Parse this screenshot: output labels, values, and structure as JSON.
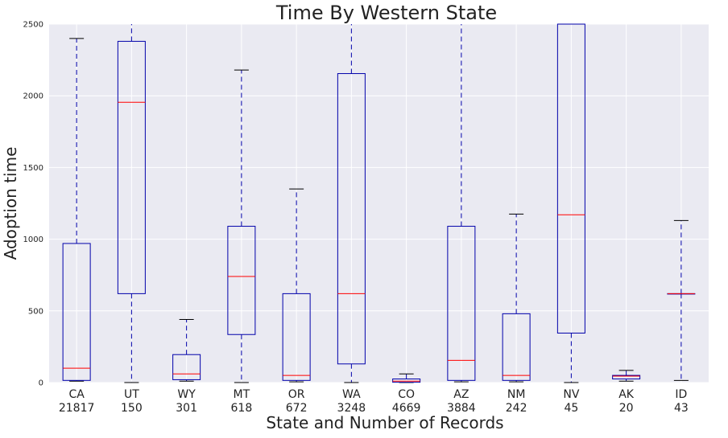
{
  "chart_data": {
    "type": "box",
    "title": "Time By Western State",
    "xlabel": "State and Number of Records",
    "ylabel": "Adoption time",
    "ylim": [
      0,
      2500
    ],
    "yticks": [
      "0",
      "500",
      "1000",
      "1500",
      "2000",
      "2500"
    ],
    "grid": true,
    "colors": {
      "background": "#eaeaf2",
      "grid": "#ffffff",
      "box": "#0000aa",
      "median": "#ff0000",
      "whisker_cap": "#000000"
    },
    "categories": [
      {
        "state": "CA",
        "records": "21817",
        "whislo": 10,
        "q1": 15,
        "med": 100,
        "q3": 970,
        "whishi": 2400
      },
      {
        "state": "UT",
        "records": "150",
        "whislo": 0,
        "q1": 620,
        "med": 1955,
        "q3": 2380,
        "whishi": 2600
      },
      {
        "state": "WY",
        "records": "301",
        "whislo": 10,
        "q1": 20,
        "med": 60,
        "q3": 195,
        "whishi": 440
      },
      {
        "state": "MT",
        "records": "618",
        "whislo": 0,
        "q1": 335,
        "med": 740,
        "q3": 1090,
        "whishi": 2180
      },
      {
        "state": "OR",
        "records": "672",
        "whislo": 5,
        "q1": 15,
        "med": 50,
        "q3": 620,
        "whishi": 1350
      },
      {
        "state": "WA",
        "records": "3248",
        "whislo": 0,
        "q1": 130,
        "med": 620,
        "q3": 2155,
        "whishi": 2600
      },
      {
        "state": "CO",
        "records": "4669",
        "whislo": 0,
        "q1": 2,
        "med": 10,
        "q3": 25,
        "whishi": 60
      },
      {
        "state": "AZ",
        "records": "3884",
        "whislo": 5,
        "q1": 15,
        "med": 155,
        "q3": 1090,
        "whishi": 2600
      },
      {
        "state": "NM",
        "records": "242",
        "whislo": 5,
        "q1": 15,
        "med": 50,
        "q3": 480,
        "whishi": 1175
      },
      {
        "state": "NV",
        "records": "45",
        "whislo": 0,
        "q1": 345,
        "med": 1170,
        "q3": 2600,
        "whishi": 2600
      },
      {
        "state": "AK",
        "records": "20",
        "whislo": 10,
        "q1": 25,
        "med": 45,
        "q3": 50,
        "whishi": 85
      },
      {
        "state": "ID",
        "records": "43",
        "whislo": 15,
        "q1": 620,
        "med": 620,
        "q3": 620,
        "whishi": 1130
      }
    ]
  }
}
